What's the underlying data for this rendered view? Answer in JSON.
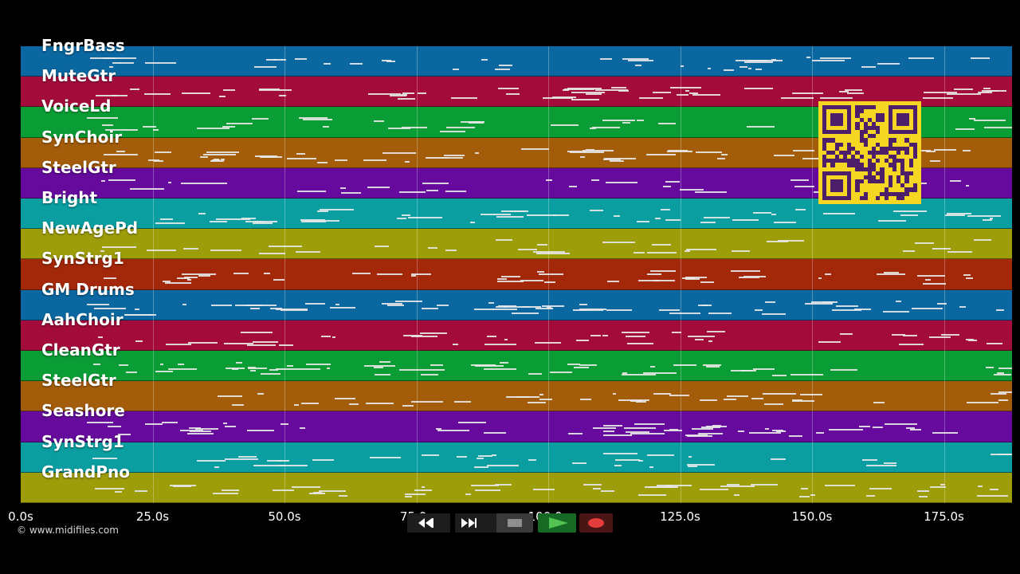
{
  "tracks": [
    {
      "name": "FngrBass",
      "color": "#0a67a0"
    },
    {
      "name": "MuteGtr",
      "color": "#a30b3b"
    },
    {
      "name": "VoiceLd",
      "color": "#0a9d35"
    },
    {
      "name": "SynChoir",
      "color": "#a35c0a"
    },
    {
      "name": "SteelGtr",
      "color": "#650a9c"
    },
    {
      "name": "Bright",
      "color": "#0a9ea0"
    },
    {
      "name": "NewAgePd",
      "color": "#9d9d0a"
    },
    {
      "name": "SynStrg1",
      "color": "#a3280a"
    },
    {
      "name": "GM Drums",
      "color": "#0a67a0"
    },
    {
      "name": "AahChoir",
      "color": "#a30b3b"
    },
    {
      "name": "CleanGtr",
      "color": "#0a9d35"
    },
    {
      "name": "SteelGtr",
      "color": "#a35c0a"
    },
    {
      "name": "Seashore",
      "color": "#650a9c"
    },
    {
      "name": "SynStrg1",
      "color": "#0a9ea0"
    },
    {
      "name": "GrandPno",
      "color": "#9d9d0a"
    }
  ],
  "timeline": {
    "ticks": [
      "0.0s",
      "25.0s",
      "50.0s",
      "75.0s",
      "100.0s",
      "125.0s",
      "150.0s",
      "175.0s"
    ]
  },
  "copyright": "© www.midifiles.com",
  "controls": {
    "rewind_icon": "rewind-icon",
    "forward_icon": "fast-forward-icon",
    "stop_icon": "stop-icon",
    "play_icon": "play-icon",
    "record_icon": "record-icon"
  },
  "qr_code": {
    "color": "#f5d623",
    "module_color": "#4d1f6b"
  }
}
